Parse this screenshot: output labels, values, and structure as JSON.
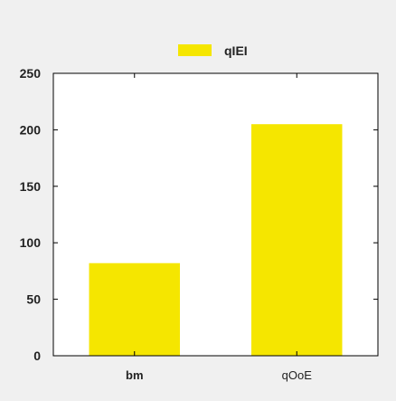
{
  "chart_data": {
    "type": "bar",
    "categories": [
      "bm",
      "qOoE"
    ],
    "series": [
      {
        "name": "qIEI",
        "values": [
          82,
          205
        ]
      }
    ],
    "title": "",
    "xlabel": "",
    "ylabel": "",
    "ylim": [
      0,
      250
    ],
    "yticks": [
      0,
      50,
      100,
      150,
      200,
      250
    ],
    "grid": false,
    "legend_position": "top-center",
    "bar_color": "#f5e600",
    "background_color": "#f0f0f0",
    "plot_background_color": "#ffffff"
  }
}
